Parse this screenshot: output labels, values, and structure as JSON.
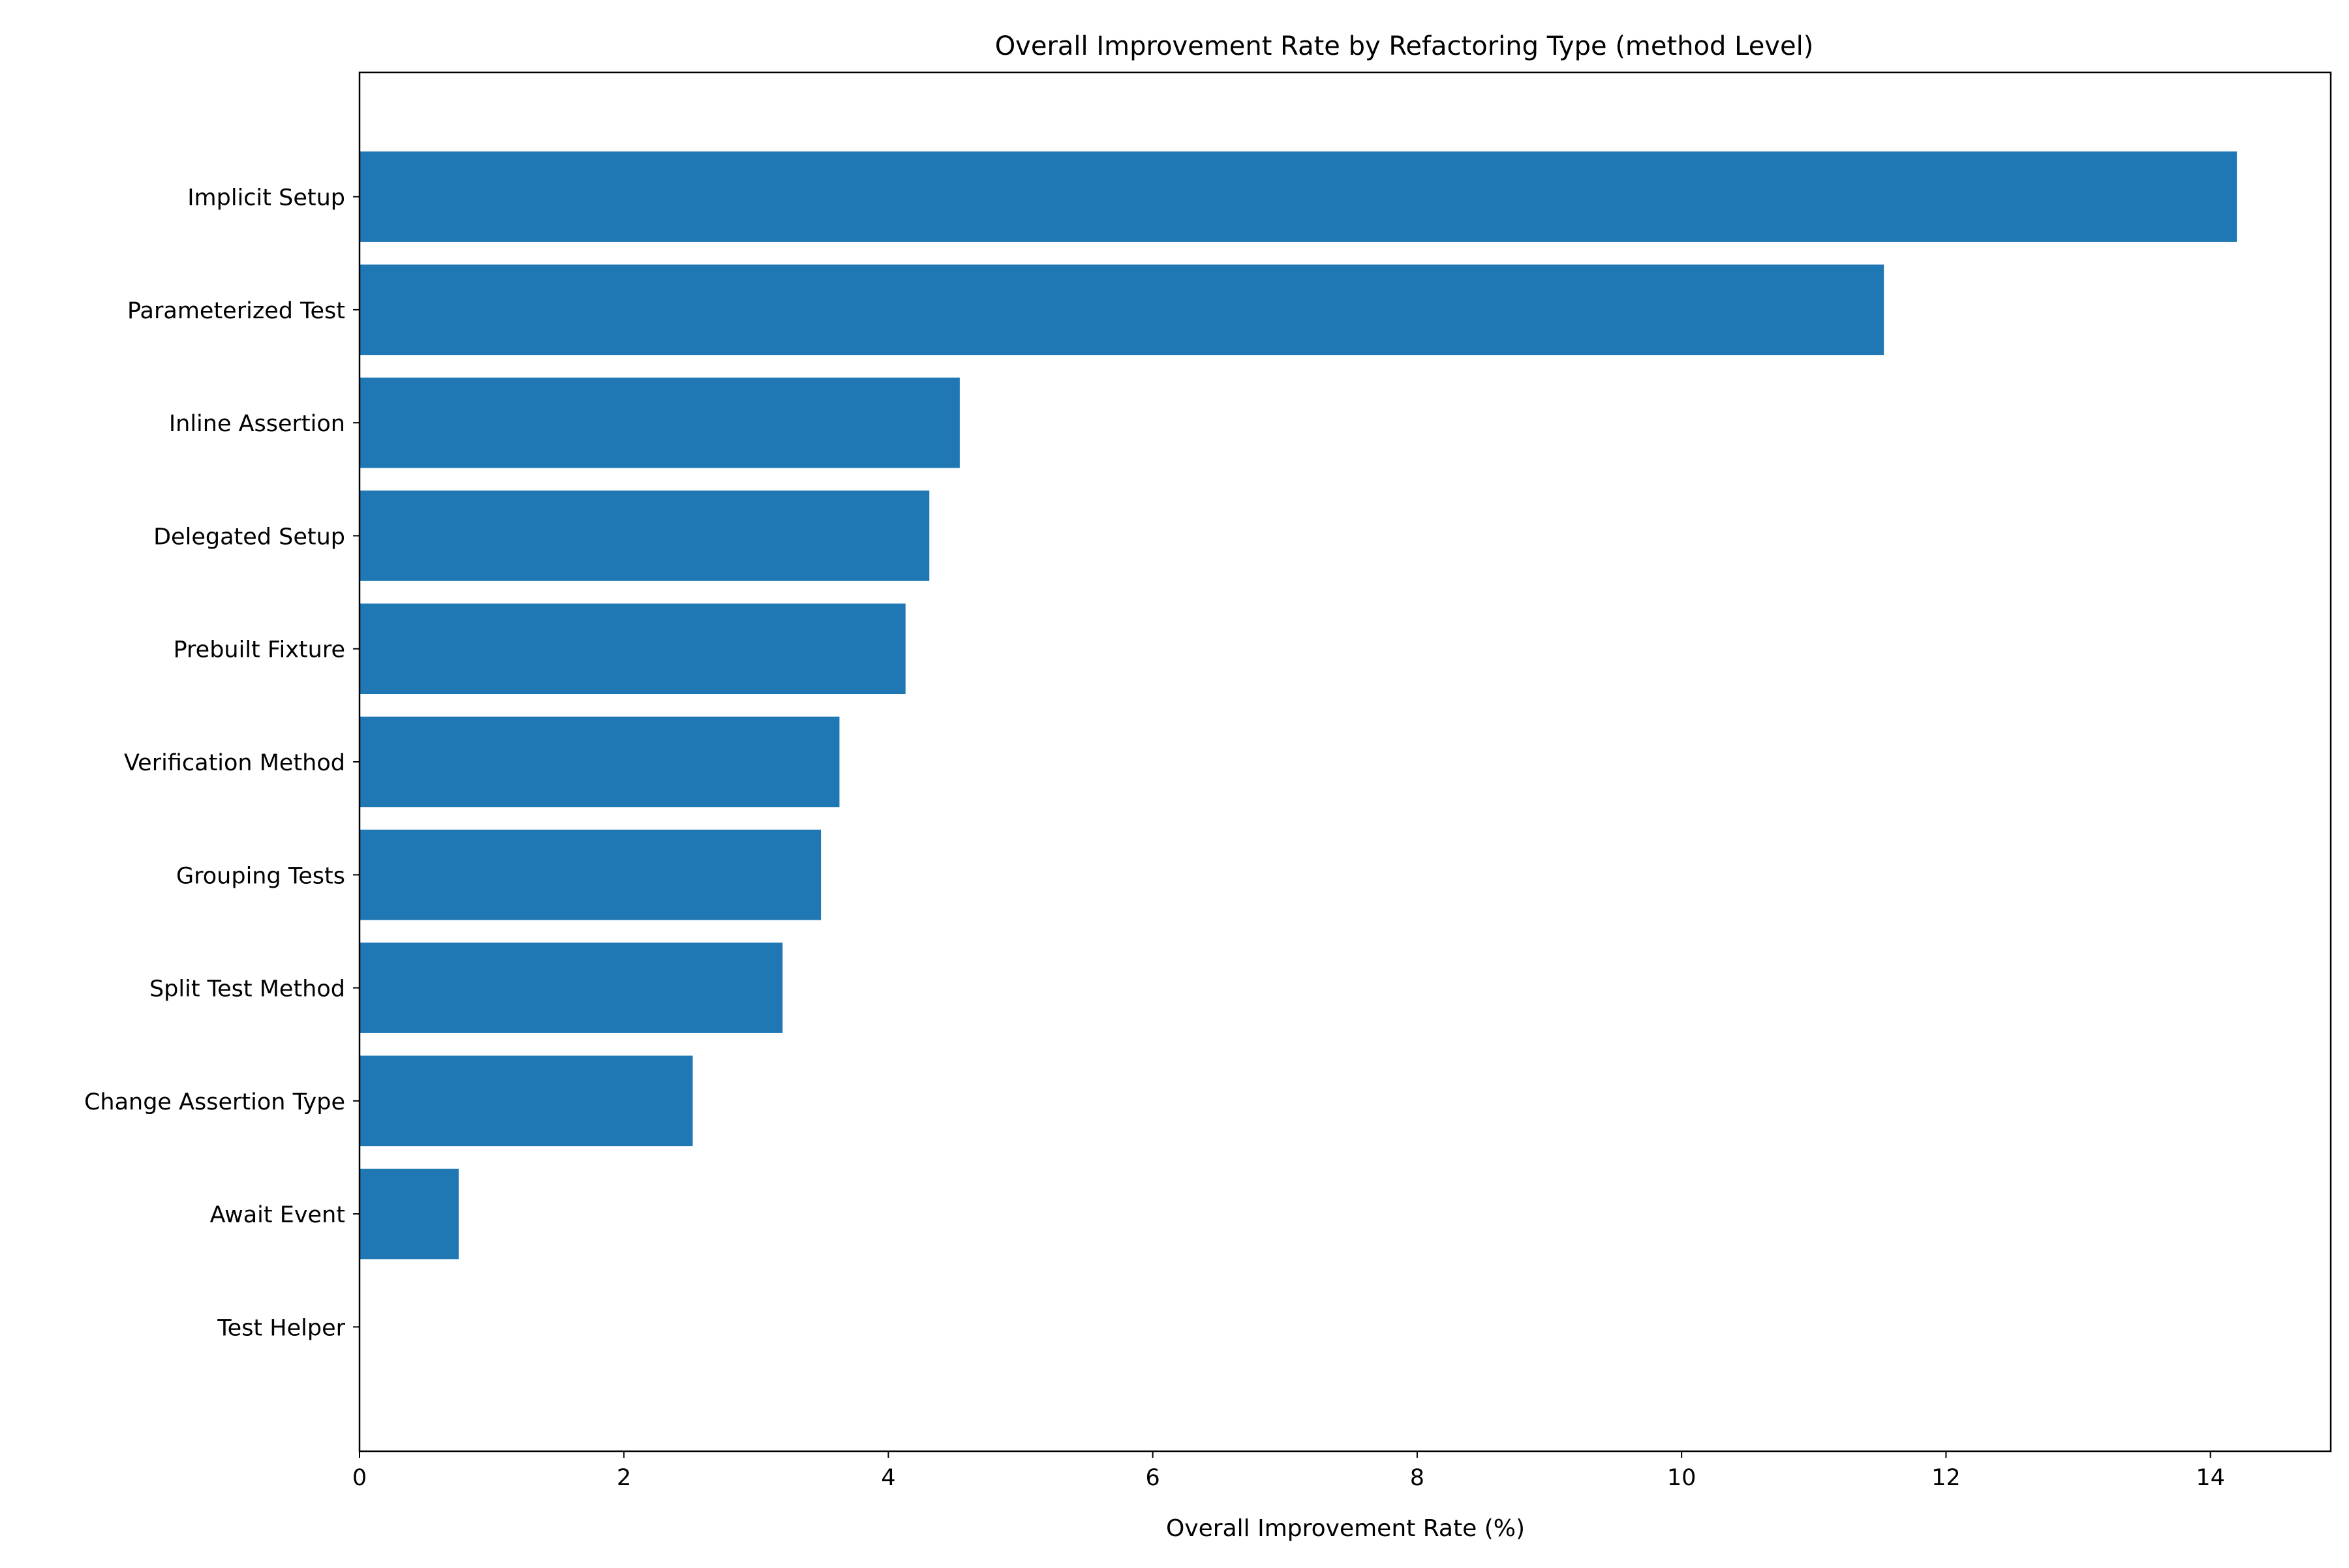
{
  "chart_data": {
    "type": "bar",
    "orientation": "horizontal",
    "title": "Overall Improvement Rate by Refactoring Type (method Level)",
    "xlabel": "Overall Improvement Rate (%)",
    "ylabel": "",
    "categories": [
      "Implicit Setup",
      "Parameterized Test",
      "Inline Assertion",
      "Delegated Setup",
      "Prebuilt Fixture",
      "Verification Method",
      "Grouping Tests",
      "Split Test Method",
      "Change Assertion Type",
      "Await Event",
      "Test Helper"
    ],
    "values": [
      14.2,
      11.53,
      4.54,
      4.31,
      4.13,
      3.63,
      3.49,
      3.2,
      2.52,
      0.75,
      0
    ],
    "xlim": [
      0,
      14.91
    ],
    "xticks": [
      0,
      2,
      4,
      6,
      8,
      10,
      12,
      14
    ],
    "xtick_labels": [
      "0",
      "2",
      "4",
      "6",
      "8",
      "10",
      "12",
      "14"
    ],
    "grid": false,
    "legend": "none",
    "bar_color": "#1f77b4"
  }
}
